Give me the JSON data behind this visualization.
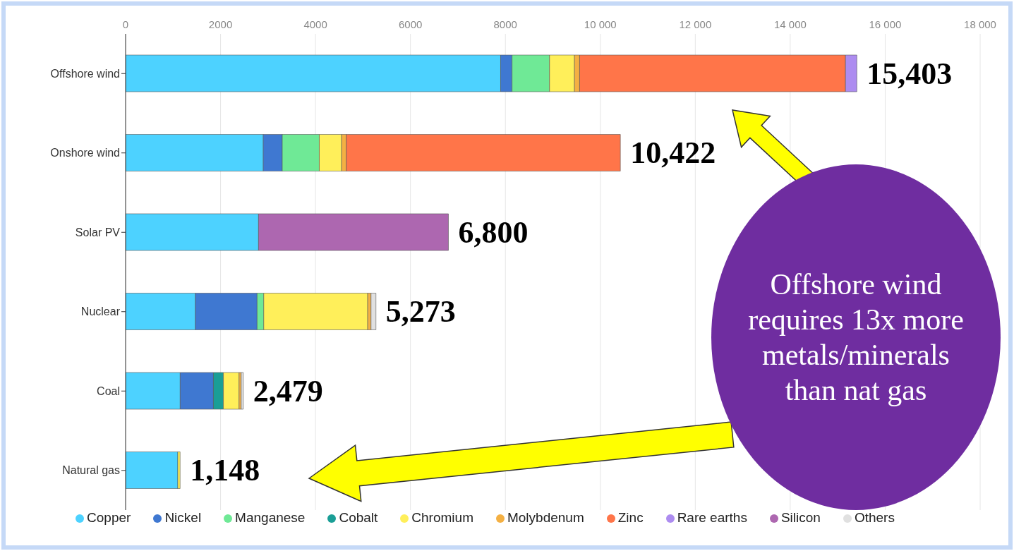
{
  "chart_data": {
    "type": "bar",
    "orientation": "horizontal",
    "stacked": true,
    "categories": [
      "Offshore wind",
      "Onshore wind",
      "Solar PV",
      "Nuclear",
      "Coal",
      "Natural gas"
    ],
    "series": [
      {
        "name": "Copper",
        "color": "#4dd2ff",
        "values": [
          7900,
          2900,
          2800,
          1470,
          1150,
          1100
        ]
      },
      {
        "name": "Nickel",
        "color": "#3f78d1",
        "values": [
          240,
          400,
          null,
          1300,
          700,
          null
        ]
      },
      {
        "name": "Manganese",
        "color": "#6fe996",
        "values": [
          790,
          780,
          null,
          140,
          null,
          null
        ]
      },
      {
        "name": "Cobalt",
        "color": "#1a9e96",
        "values": [
          null,
          null,
          null,
          null,
          210,
          null
        ]
      },
      {
        "name": "Chromium",
        "color": "#ffef5a",
        "values": [
          525,
          470,
          null,
          2190,
          330,
          48
        ]
      },
      {
        "name": "Molybdenum",
        "color": "#f4b043",
        "values": [
          109,
          100,
          null,
          70,
          45,
          null
        ]
      },
      {
        "name": "Zinc",
        "color": "#ff7549",
        "values": [
          5600,
          5772,
          null,
          null,
          null,
          null
        ]
      },
      {
        "name": "Rare earths",
        "color": "#ad8cf0",
        "values": [
          239,
          null,
          null,
          null,
          null,
          null
        ]
      },
      {
        "name": "Silicon",
        "color": "#ad67b0",
        "values": [
          null,
          null,
          4000,
          null,
          null,
          null
        ]
      },
      {
        "name": "Others",
        "color": "#e0e0e0",
        "values": [
          null,
          null,
          null,
          103,
          44,
          null
        ]
      }
    ],
    "totals": [
      "15,403",
      "10,422",
      "6,800",
      "5,273",
      "2,479",
      "1,148"
    ],
    "xlim": [
      0,
      18000
    ],
    "xticks": [
      0,
      2000,
      4000,
      6000,
      8000,
      {
        "value": 10000,
        "label": "10 000"
      },
      {
        "value": 12000,
        "label": "12 000"
      },
      {
        "value": 14000,
        "label": "14 000"
      },
      {
        "value": 16000,
        "label": "16 000"
      },
      {
        "value": 18000,
        "label": "18 000"
      }
    ],
    "grid": "x",
    "legend": "bottom",
    "annotations": [
      "Offshore wind requires 13x more metals/minerals than nat gas"
    ]
  }
}
